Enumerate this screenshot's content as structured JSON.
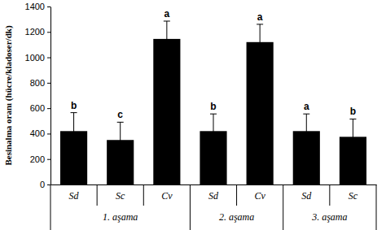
{
  "chart_data": {
    "type": "bar",
    "y_label": "Besinalma oranı (hücre/kladoser/dk)",
    "categories": [
      "Sd",
      "Sc",
      "Cv",
      "Sd",
      "Cv",
      "Sd",
      "Sc"
    ],
    "groups": [
      "1. aşama",
      "1. aşama",
      "1. aşama",
      "2. aşama",
      "2. aşama",
      "3. aşama",
      "3. aşama"
    ],
    "values": [
      420,
      350,
      1145,
      420,
      1120,
      420,
      375
    ],
    "errors": [
      145,
      140,
      140,
      135,
      140,
      135,
      140
    ],
    "significance": [
      "b",
      "c",
      "a",
      "b",
      "a",
      "a",
      "b"
    ],
    "color": "#000000",
    "ylim": [
      0,
      1400
    ],
    "yticks": [
      0,
      200,
      400,
      600,
      800,
      1000,
      1200,
      1400
    ],
    "grid": false
  }
}
